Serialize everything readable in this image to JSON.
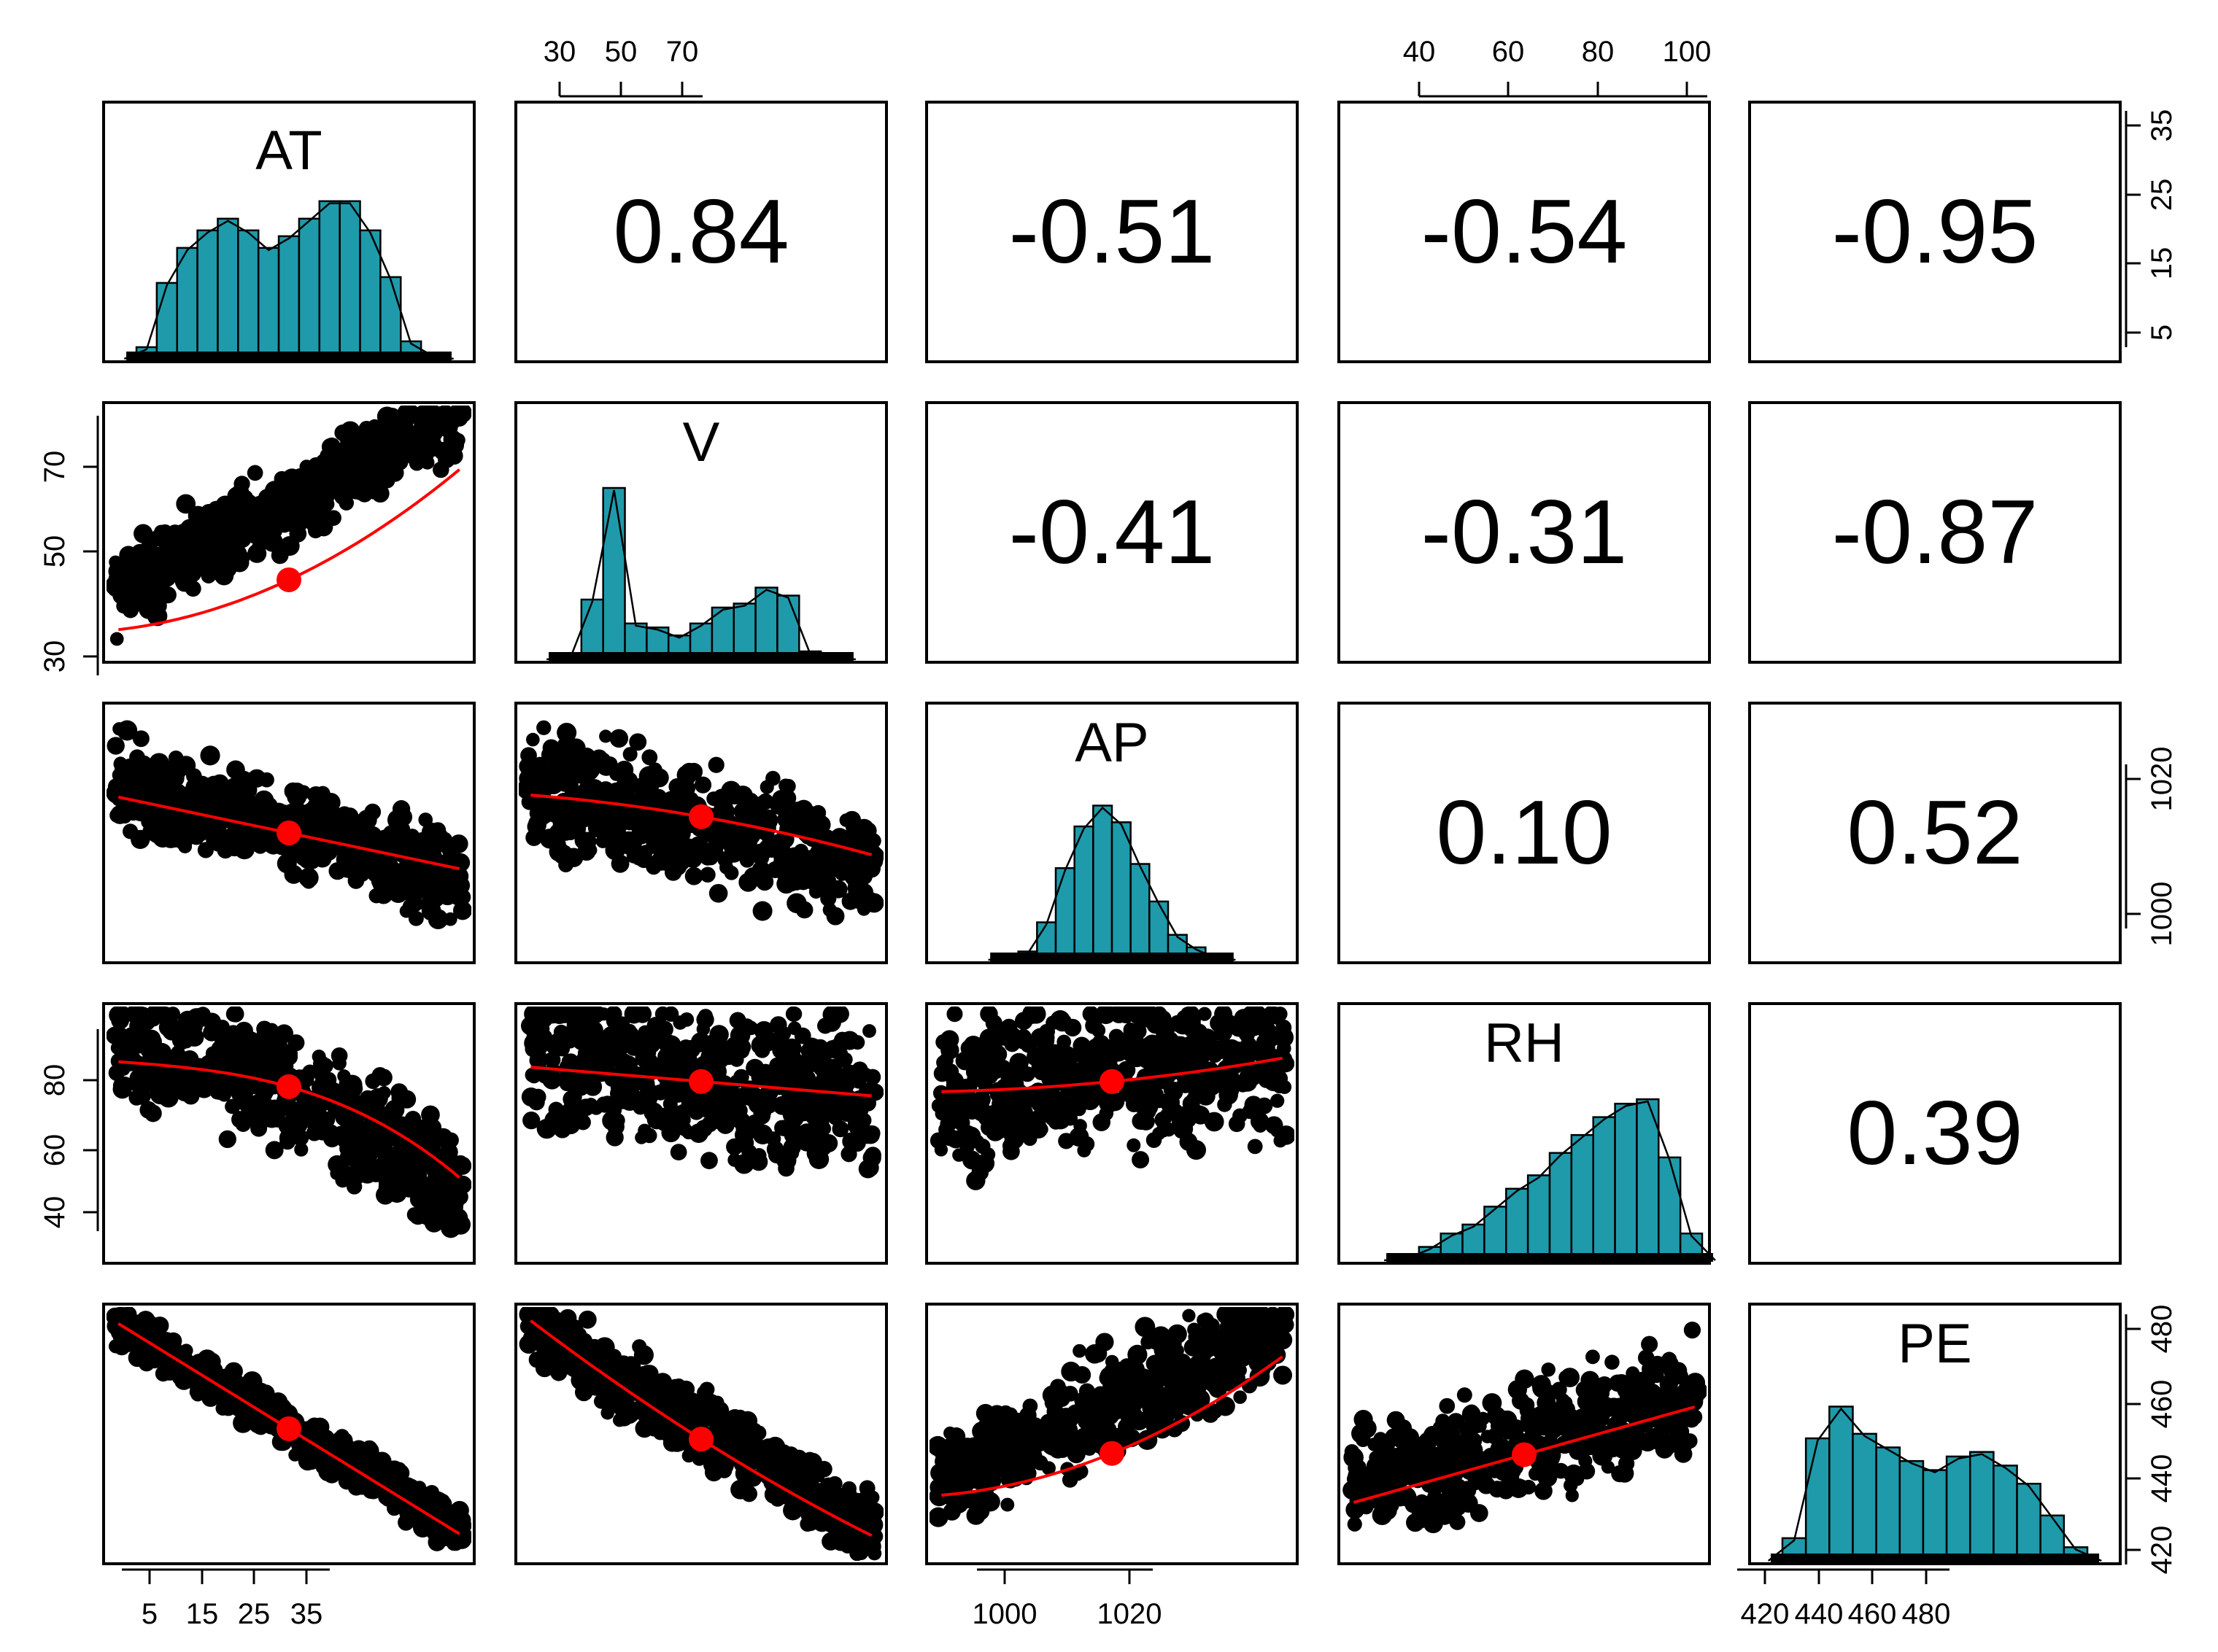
{
  "chart_data": {
    "type": "scatter-matrix",
    "variables": [
      "AT",
      "V",
      "AP",
      "RH",
      "PE"
    ],
    "colors": {
      "bar": "#1f9aaa",
      "points": "#000000",
      "smooth": "#ff0000",
      "text": "#000000"
    },
    "correlations": [
      {
        "row": 0,
        "col": 1,
        "label": "0.84"
      },
      {
        "row": 0,
        "col": 2,
        "label": "-0.51"
      },
      {
        "row": 0,
        "col": 3,
        "label": "-0.54"
      },
      {
        "row": 0,
        "col": 4,
        "label": "-0.95"
      },
      {
        "row": 1,
        "col": 2,
        "label": "-0.41"
      },
      {
        "row": 1,
        "col": 3,
        "label": "-0.31"
      },
      {
        "row": 1,
        "col": 4,
        "label": "-0.87"
      },
      {
        "row": 2,
        "col": 3,
        "label": "0.10"
      },
      {
        "row": 2,
        "col": 4,
        "label": "0.52"
      },
      {
        "row": 3,
        "col": 4,
        "label": "0.39"
      }
    ],
    "axes": {
      "bottom": [
        {
          "col": 0,
          "ticks": [
            "5",
            "15",
            "25",
            "35"
          ]
        },
        {
          "col": 2,
          "ticks": [
            "1000",
            "1020"
          ]
        },
        {
          "col": 4,
          "ticks": [
            "420",
            "440",
            "460",
            "480"
          ]
        }
      ],
      "top": [
        {
          "col": 1,
          "ticks": [
            "30",
            "50",
            "70"
          ]
        },
        {
          "col": 3,
          "ticks": [
            "40",
            "60",
            "80",
            "100"
          ]
        }
      ],
      "left": [
        {
          "row": 1,
          "ticks": [
            "30",
            "50",
            "70"
          ]
        },
        {
          "row": 3,
          "ticks": [
            "40",
            "60",
            "80"
          ]
        }
      ],
      "right": [
        {
          "row": 0,
          "ticks": [
            "5",
            "15",
            "25",
            "35"
          ]
        },
        {
          "row": 2,
          "ticks": [
            "1000",
            "1020"
          ]
        },
        {
          "row": 4,
          "ticks": [
            "420",
            "440",
            "460",
            "480"
          ]
        }
      ]
    },
    "histograms": [
      {
        "var": "AT",
        "counts": [
          2,
          13,
          19,
          22,
          24,
          22,
          19,
          21,
          24,
          27,
          27,
          22,
          14,
          3,
          1
        ]
      },
      {
        "var": "V",
        "counts": [
          1,
          15,
          43,
          9,
          8,
          6,
          9,
          13,
          14,
          18,
          16,
          2,
          1
        ]
      },
      {
        "var": "AP",
        "counts": [
          1,
          2,
          9,
          22,
          32,
          37,
          33,
          23,
          14,
          6,
          3,
          1
        ]
      },
      {
        "var": "RH",
        "counts": [
          1,
          3,
          6,
          8,
          12,
          16,
          19,
          24,
          28,
          32,
          35,
          36,
          23,
          6
        ]
      },
      {
        "var": "PE",
        "counts": [
          5,
          27,
          34,
          28,
          25,
          22,
          20,
          23,
          24,
          21,
          17,
          10,
          3
        ]
      }
    ]
  }
}
